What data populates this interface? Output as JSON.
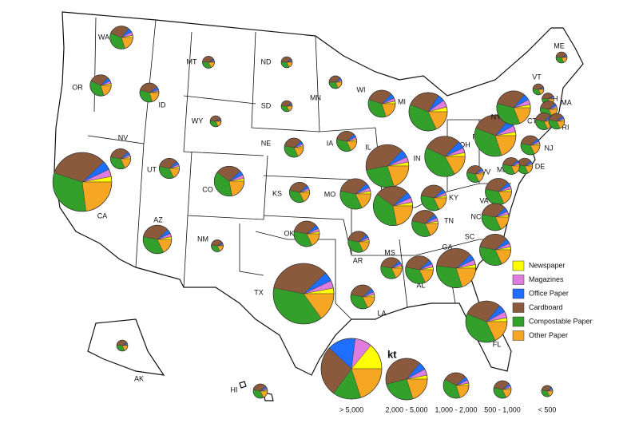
{
  "categories": [
    {
      "name": "Newspaper",
      "color": "#ffff00"
    },
    {
      "name": "Magazines",
      "color": "#e07be0"
    },
    {
      "name": "Office Paper",
      "color": "#1e6fff"
    },
    {
      "name": "Cardboard",
      "color": "#8b5a3c"
    },
    {
      "name": "Compostable Paper",
      "color": "#33a02c"
    },
    {
      "name": "Other Paper",
      "color": "#f5a623"
    }
  ],
  "states": [
    {
      "label": "WA",
      "total": 1300,
      "values": [
        3,
        5,
        6,
        30,
        36,
        20
      ]
    },
    {
      "label": "OR",
      "total": 1100,
      "values": [
        3,
        4,
        6,
        30,
        37,
        20
      ]
    },
    {
      "label": "ID",
      "total": 900,
      "values": [
        2,
        3,
        5,
        36,
        34,
        20
      ]
    },
    {
      "label": "MT",
      "total": 350,
      "values": [
        2,
        3,
        4,
        40,
        33,
        18
      ]
    },
    {
      "label": "ND",
      "total": 300,
      "values": [
        2,
        3,
        4,
        40,
        33,
        18
      ]
    },
    {
      "label": "SD",
      "total": 300,
      "values": [
        2,
        3,
        4,
        40,
        33,
        18
      ]
    },
    {
      "label": "MN",
      "total": 400,
      "values": [
        3,
        4,
        5,
        38,
        32,
        18
      ]
    },
    {
      "label": "WI",
      "total": 1800,
      "values": [
        3,
        4,
        6,
        32,
        35,
        20
      ]
    },
    {
      "label": "MI",
      "total": 3600,
      "values": [
        4,
        6,
        6,
        28,
        38,
        18
      ]
    },
    {
      "label": "WY",
      "total": 300,
      "values": [
        2,
        3,
        4,
        40,
        33,
        18
      ]
    },
    {
      "label": "NV",
      "total": 1000,
      "values": [
        3,
        4,
        5,
        35,
        35,
        18
      ]
    },
    {
      "label": "UT",
      "total": 1000,
      "values": [
        3,
        4,
        5,
        35,
        35,
        18
      ]
    },
    {
      "label": "CO",
      "total": 2200,
      "values": [
        3,
        4,
        5,
        28,
        38,
        22
      ]
    },
    {
      "label": "NE",
      "total": 900,
      "values": [
        3,
        4,
        5,
        35,
        35,
        18
      ]
    },
    {
      "label": "IA",
      "total": 1000,
      "values": [
        3,
        4,
        5,
        35,
        35,
        18
      ]
    },
    {
      "label": "IL",
      "total": 4500,
      "values": [
        3,
        4,
        6,
        40,
        27,
        20
      ]
    },
    {
      "label": "IN",
      "total": 3800,
      "values": [
        3,
        4,
        5,
        28,
        38,
        22
      ]
    },
    {
      "label": "OH",
      "total": 4000,
      "values": [
        3,
        4,
        6,
        30,
        40,
        17
      ]
    },
    {
      "label": "PA",
      "total": 4200,
      "values": [
        3,
        5,
        6,
        30,
        36,
        20
      ]
    },
    {
      "label": "NY",
      "total": 2800,
      "values": [
        3,
        5,
        6,
        32,
        35,
        19
      ]
    },
    {
      "label": "VT",
      "total": 300,
      "values": [
        2,
        3,
        4,
        40,
        33,
        18
      ]
    },
    {
      "label": "NH",
      "total": 350,
      "values": [
        2,
        3,
        4,
        40,
        33,
        18
      ]
    },
    {
      "label": "ME",
      "total": 300,
      "values": [
        2,
        3,
        4,
        40,
        33,
        18
      ]
    },
    {
      "label": "MA",
      "total": 700,
      "values": [
        3,
        4,
        5,
        35,
        35,
        18
      ]
    },
    {
      "label": "CT",
      "total": 700,
      "values": [
        3,
        4,
        5,
        35,
        35,
        18
      ]
    },
    {
      "label": "RI",
      "total": 600,
      "values": [
        3,
        4,
        5,
        35,
        35,
        18
      ]
    },
    {
      "label": "NJ",
      "total": 900,
      "values": [
        3,
        4,
        5,
        35,
        35,
        18
      ]
    },
    {
      "label": "DE",
      "total": 600,
      "values": [
        3,
        4,
        5,
        35,
        35,
        18
      ]
    },
    {
      "label": "MD",
      "total": 700,
      "values": [
        3,
        4,
        5,
        35,
        35,
        18
      ]
    },
    {
      "label": "WV",
      "total": 700,
      "values": [
        3,
        4,
        5,
        35,
        35,
        18
      ]
    },
    {
      "label": "VA",
      "total": 1700,
      "values": [
        3,
        4,
        5,
        35,
        35,
        18
      ]
    },
    {
      "label": "KY",
      "total": 1600,
      "values": [
        3,
        4,
        5,
        35,
        35,
        18
      ]
    },
    {
      "label": "TN",
      "total": 1700,
      "values": [
        3,
        4,
        5,
        35,
        35,
        18
      ]
    },
    {
      "label": "NC",
      "total": 1800,
      "values": [
        3,
        4,
        5,
        35,
        35,
        18
      ]
    },
    {
      "label": "SC",
      "total": 2400,
      "values": [
        3,
        4,
        5,
        35,
        35,
        18
      ]
    },
    {
      "label": "GA",
      "total": 3800,
      "values": [
        3,
        4,
        5,
        36,
        32,
        20
      ]
    },
    {
      "label": "AL",
      "total": 1900,
      "values": [
        3,
        4,
        5,
        35,
        35,
        18
      ]
    },
    {
      "label": "MS",
      "total": 1100,
      "values": [
        3,
        4,
        5,
        35,
        35,
        18
      ]
    },
    {
      "label": "FL",
      "total": 4200,
      "values": [
        3,
        5,
        6,
        30,
        38,
        18
      ]
    },
    {
      "label": "LA",
      "total": 1400,
      "values": [
        3,
        4,
        5,
        35,
        35,
        18
      ]
    },
    {
      "label": "AR",
      "total": 1100,
      "values": [
        3,
        4,
        5,
        35,
        35,
        18
      ]
    },
    {
      "label": "MO",
      "total": 2300,
      "values": [
        3,
        4,
        5,
        35,
        35,
        18
      ]
    },
    {
      "label": "KS",
      "total": 1000,
      "values": [
        3,
        4,
        5,
        35,
        35,
        18
      ]
    },
    {
      "label": "OK",
      "total": 1600,
      "values": [
        3,
        4,
        5,
        35,
        35,
        18
      ]
    },
    {
      "label": "TX",
      "total": 9000,
      "values": [
        3,
        4,
        5,
        35,
        38,
        15
      ]
    },
    {
      "label": "NM",
      "total": 350,
      "values": [
        2,
        3,
        4,
        40,
        33,
        18
      ]
    },
    {
      "label": "AZ",
      "total": 2000,
      "values": [
        3,
        4,
        5,
        35,
        35,
        18
      ]
    },
    {
      "label": "CA",
      "total": 8500,
      "values": [
        3,
        4,
        5,
        33,
        32,
        23
      ]
    },
    {
      "label": "AK",
      "total": 300,
      "values": [
        2,
        3,
        4,
        40,
        33,
        18
      ]
    },
    {
      "label": "HI",
      "total": 500,
      "values": [
        3,
        4,
        5,
        35,
        35,
        18
      ]
    }
  ],
  "size_legend": {
    "title": "kt",
    "classes": [
      {
        "label": "> 5,000",
        "values": [
          14,
          9,
          15,
          27,
          15,
          20
        ]
      },
      {
        "label": "2,000 - 5,000",
        "values": [
          3,
          5,
          6,
          40,
          26,
          20
        ]
      },
      {
        "label": "1,000 - 2,000",
        "values": [
          3,
          4,
          5,
          30,
          38,
          20
        ]
      },
      {
        "label": "500 - 1,000",
        "values": [
          3,
          4,
          5,
          35,
          35,
          18
        ]
      },
      {
        "label": "< 500",
        "values": [
          3,
          4,
          5,
          35,
          35,
          18
        ]
      }
    ]
  }
}
